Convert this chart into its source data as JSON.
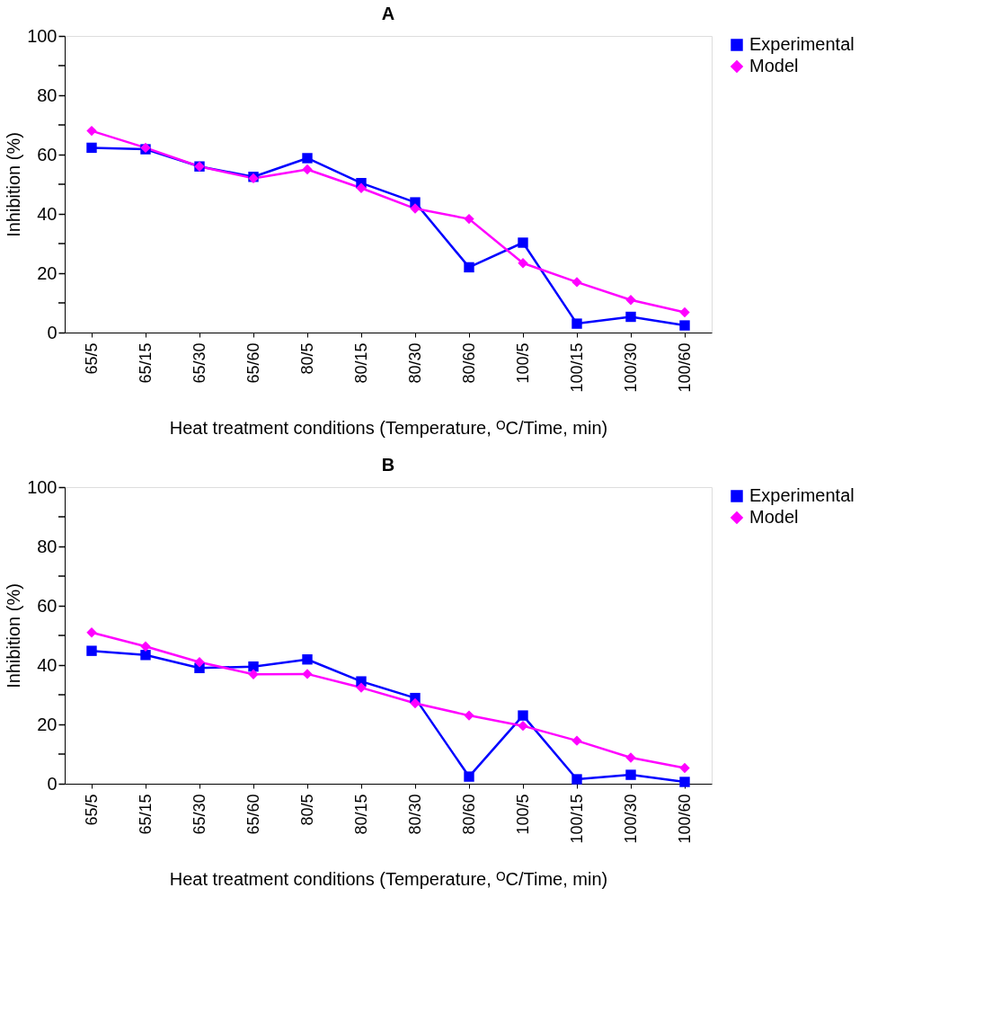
{
  "chart_data": [
    {
      "type": "line",
      "title": "A",
      "xlabel": "Heat treatment conditions (Temperature, ᴼC/Time, min)",
      "ylabel": "Inhibition (%)",
      "categories": [
        "65/5",
        "65/15",
        "65/30",
        "65/60",
        "80/5",
        "80/15",
        "80/30",
        "80/60",
        "100/5",
        "100/15",
        "100/30",
        "100/60"
      ],
      "series": [
        {
          "name": "Experimental",
          "color": "#0000ff",
          "marker": "square",
          "values": [
            62.3,
            61.8,
            56,
            52.5,
            58.8,
            50.4,
            43.9,
            22,
            30.3,
            3,
            5.3,
            2.4
          ]
        },
        {
          "name": "Model",
          "color": "#ff00ff",
          "marker": "diamond",
          "values": [
            68,
            62.3,
            56,
            52,
            55,
            48.7,
            41.8,
            38.3,
            23.4,
            17,
            11,
            6.8
          ]
        }
      ],
      "ylim": [
        0,
        100
      ],
      "yticks": [
        0,
        {
          "value": 10,
          "label": null
        },
        20,
        {
          "value": 30,
          "label": null
        },
        40,
        {
          "value": 50,
          "label": null
        },
        60,
        {
          "value": 70,
          "label": null
        },
        80,
        {
          "value": 90,
          "label": null
        },
        100
      ],
      "grid": false,
      "legend": "top right",
      "line_style": "solid"
    },
    {
      "type": "line",
      "title": "B",
      "xlabel": "Heat treatment conditions (Temperature, ᴼC/Time, min)",
      "ylabel": "Inhibition (%)",
      "categories": [
        "65/5",
        "65/15",
        "65/30",
        "65/60",
        "80/5",
        "80/15",
        "80/30",
        "80/60",
        "100/5",
        "100/15",
        "100/30",
        "100/60"
      ],
      "series": [
        {
          "name": "Experimental",
          "color": "#0000ff",
          "marker": "square",
          "values": [
            44.8,
            43.4,
            39,
            39.5,
            41.9,
            34.5,
            28.9,
            2.4,
            23,
            1.5,
            3,
            0.6
          ]
        },
        {
          "name": "Model",
          "color": "#ff00ff",
          "marker": "diamond",
          "values": [
            51,
            46.3,
            41,
            36.9,
            37,
            32.4,
            27.1,
            23,
            19.5,
            14.5,
            8.8,
            5.3
          ]
        }
      ],
      "ylim": [
        0,
        100
      ],
      "yticks": [
        0,
        {
          "value": 10,
          "label": null
        },
        20,
        {
          "value": 30,
          "label": null
        },
        40,
        {
          "value": 50,
          "label": null
        },
        60,
        {
          "value": 70,
          "label": null
        },
        80,
        {
          "value": 90,
          "label": null
        },
        100
      ],
      "grid": false,
      "legend": "top right",
      "line_style": "solid"
    }
  ]
}
